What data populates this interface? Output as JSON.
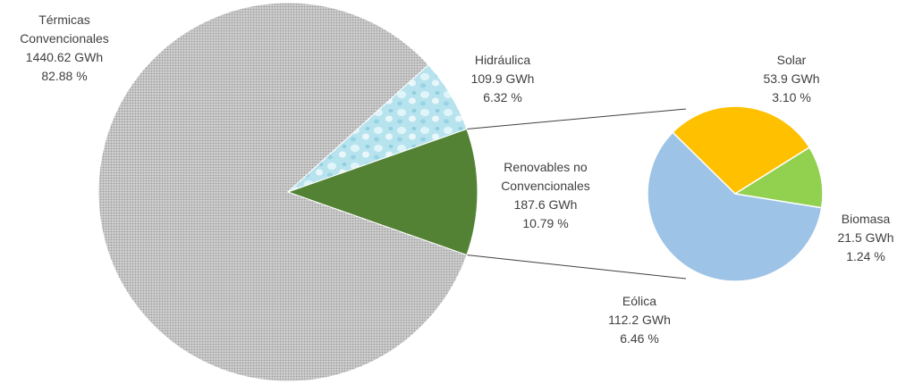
{
  "chart_data": [
    {
      "type": "pie",
      "title": "",
      "slices": [
        {
          "key": "termicas",
          "name_lines": [
            "Térmicas",
            "Convencionales"
          ],
          "value_label": "1440.62 GWh",
          "pct_label": "82.88 %",
          "value": 1440.62,
          "percent": 82.88,
          "color": "#c8c8c8",
          "pattern": "dots"
        },
        {
          "key": "hidraulica",
          "name_lines": [
            "Hidráulica"
          ],
          "value_label": "109.9 GWh",
          "pct_label": "6.32 %",
          "value": 109.9,
          "percent": 6.32,
          "color": "#bfe6f0",
          "pattern": "water"
        },
        {
          "key": "renovables",
          "name_lines": [
            "Renovables no",
            "Convencionales"
          ],
          "value_label": "187.6 GWh",
          "pct_label": "10.79 %",
          "value": 187.6,
          "percent": 10.79,
          "color": "#548235"
        }
      ]
    },
    {
      "type": "pie",
      "title": "",
      "slices": [
        {
          "key": "solar",
          "name_lines": [
            "Solar"
          ],
          "value_label": "53.9 GWh",
          "pct_label": "3.10 %",
          "value": 53.9,
          "percent": 3.1,
          "color": "#ffc000"
        },
        {
          "key": "biomasa",
          "name_lines": [
            "Biomasa"
          ],
          "value_label": "21.5 GWh",
          "pct_label": "1.24 %",
          "value": 21.5,
          "percent": 1.24,
          "color": "#92d050"
        },
        {
          "key": "eolica",
          "name_lines": [
            "Eólica"
          ],
          "value_label": "112.2 GWh",
          "pct_label": "6.46 %",
          "value": 112.2,
          "percent": 6.46,
          "color": "#9dc3e6"
        }
      ]
    }
  ]
}
